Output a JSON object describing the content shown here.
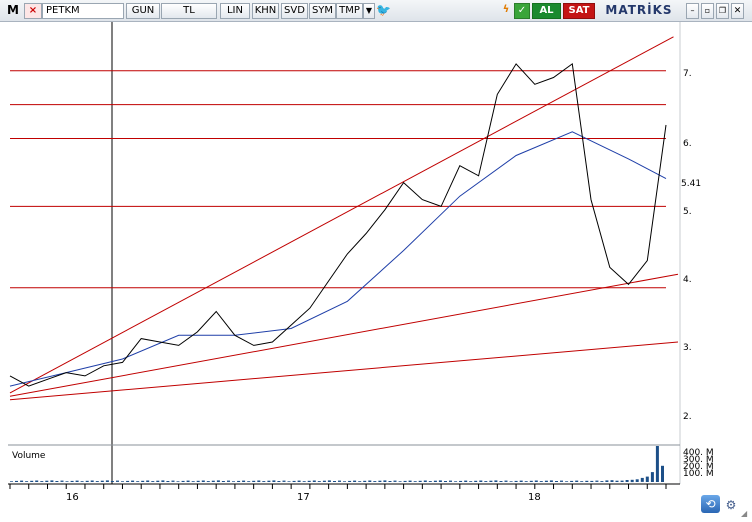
{
  "toolbar": {
    "logo": "M",
    "symbol": "PETKM",
    "period": "GUN",
    "currency": "TL",
    "scale": "LIN",
    "buttons": [
      "KHN",
      "SVD",
      "SYM",
      "TMP"
    ],
    "buy_label": "AL",
    "sell_label": "SAT",
    "brand": "MATRİKS",
    "icons": [
      "x-icon",
      "dropdown-icon",
      "twitter-icon",
      "flash-icon",
      "check-icon",
      "minimize-icon",
      "maximize-icon",
      "restore-icon",
      "close-icon"
    ]
  },
  "price_axis": {
    "labels": [
      "7.",
      "6.",
      "5.41",
      "5.",
      "4.",
      "3.",
      "2."
    ]
  },
  "volume_axis": {
    "labels": [
      "400. M",
      "300. M",
      "200. M",
      "100. M"
    ]
  },
  "chart_data": {
    "type": "line",
    "series": [
      {
        "x": [
          "2016-01",
          "2016-02",
          "2016-03",
          "2016-04",
          "2016-05",
          "2016-06",
          "2016-07",
          "2016-08",
          "2016-09",
          "2016-10",
          "2016-11",
          "2016-12",
          "2017-01",
          "2017-02",
          "2017-03",
          "2017-04",
          "2017-05",
          "2017-06",
          "2017-07",
          "2017-08",
          "2017-09",
          "2017-10",
          "2017-11",
          "2017-12",
          "2018-01",
          "2018-02",
          "2018-03",
          "2018-04",
          "2018-05",
          "2018-06",
          "2018-07",
          "2018-08",
          "2018-09",
          "2018-10",
          "2018-11",
          "2018-12"
        ],
        "values": [
          2.5,
          2.35,
          2.45,
          2.55,
          2.5,
          2.65,
          2.7,
          3.05,
          3.0,
          2.95,
          3.15,
          3.45,
          3.1,
          2.95,
          3.0,
          3.25,
          3.5,
          3.9,
          4.3,
          4.6,
          4.95,
          5.35,
          5.1,
          5.0,
          5.6,
          5.45,
          6.65,
          7.1,
          6.8,
          6.9,
          7.1,
          5.1,
          4.1,
          3.85,
          4.2,
          6.2
        ]
      },
      {
        "x": [
          "2016-01",
          "2016-04",
          "2016-07",
          "2016-10",
          "2017-01",
          "2017-04",
          "2017-07",
          "2017-10",
          "2018-01",
          "2018-04",
          "2018-07",
          "2018-10",
          "2018-12"
        ],
        "values": [
          2.35,
          2.55,
          2.75,
          3.1,
          3.1,
          3.2,
          3.6,
          4.35,
          5.15,
          5.75,
          6.1,
          5.7,
          5.41
        ]
      }
    ],
    "categories": [
      "16",
      "17",
      "18"
    ],
    "last_value": 5.41,
    "horizontal_levels": [
      7.0,
      6.5,
      6.0,
      5.0,
      3.8
    ],
    "ylim": [
      1.6,
      7.6
    ],
    "volume_label": "Volume",
    "volume": {
      "ylim": [
        0,
        400
      ],
      "spike_values": [
        12,
        15,
        10,
        18,
        20,
        14,
        16,
        22,
        25,
        30,
        45,
        60,
        110,
        400,
        180
      ]
    },
    "colors": {
      "price": "#000000",
      "moving_average": "#1f3fa8",
      "levels": "#c00000",
      "volume": "#1c4f88"
    }
  }
}
